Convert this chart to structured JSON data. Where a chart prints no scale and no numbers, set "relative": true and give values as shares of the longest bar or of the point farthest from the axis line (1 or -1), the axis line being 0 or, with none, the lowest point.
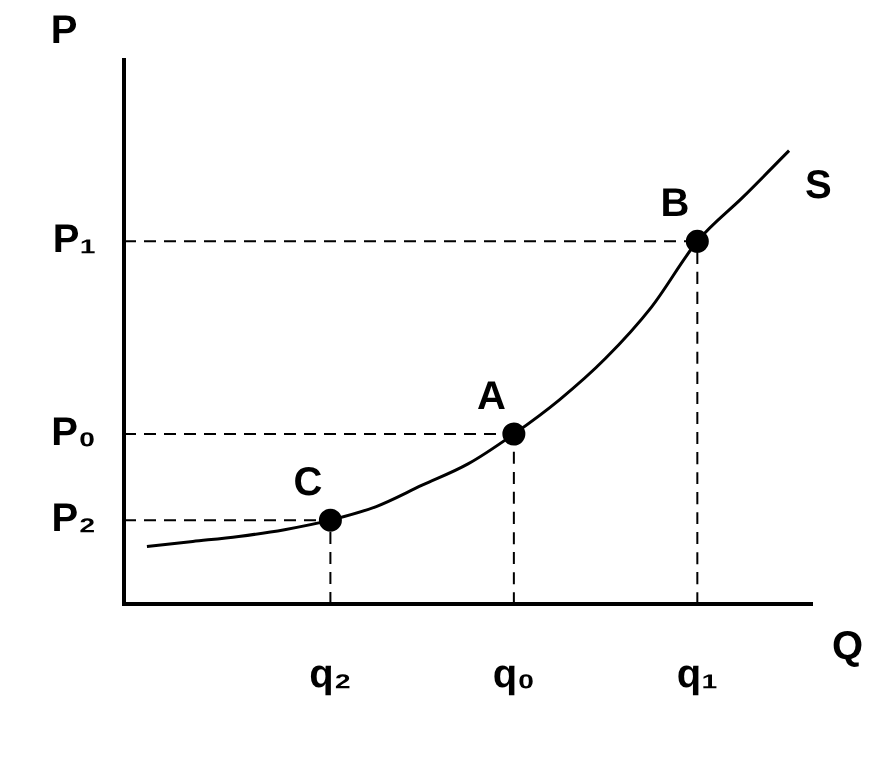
{
  "chart_data": {
    "type": "line",
    "xlabel": "Q",
    "ylabel": "P",
    "relative": true,
    "grid": false,
    "legend": false,
    "categories": [
      null,
      null,
      null,
      null,
      "q₂",
      null,
      null,
      null,
      "q₀",
      null,
      null,
      null,
      "q₁",
      null,
      null
    ],
    "series": [
      {
        "name": "S",
        "type": "line",
        "color": "#000000",
        "marker": "none",
        "values": [
          0.127,
          0.138,
          0.149,
          0.164,
          0.185,
          0.215,
          0.262,
          0.309,
          0.375,
          0.451,
          0.542,
          0.655,
          0.8,
          0.898,
          1
        ]
      },
      {
        "type": "line",
        "color": "#000000",
        "marker": "none",
        "line_style": "dashed",
        "x": [
          "q₂",
          "q₂"
        ],
        "values": [
          0,
          0.185
        ]
      },
      {
        "type": "line",
        "color": "#000000",
        "marker": "none",
        "line_style": "dashed",
        "x": [
          "q₀",
          "q₀"
        ],
        "values": [
          0,
          0.375
        ]
      },
      {
        "type": "line",
        "color": "#000000",
        "marker": "none",
        "line_style": "dashed",
        "x": [
          "q₁",
          "q₁"
        ],
        "values": [
          0,
          0.8
        ]
      },
      {
        "type": "scatter",
        "color": "#000000",
        "marker": "circle",
        "x": [
          "q₂",
          "q₀",
          "q₁"
        ],
        "values": [
          0.185,
          0.375,
          0.8
        ]
      }
    ],
    "annotations": [
      {
        "text": "C",
        "x": "q₂",
        "y": 0.185
      },
      {
        "text": "A",
        "x": "q₀",
        "y": 0.375
      },
      {
        "text": "B",
        "x": "q₁",
        "y": 0.8
      }
    ],
    "ref_lines": [
      {
        "axis": "y",
        "value": 0.8,
        "label": "P₁",
        "line_style": "dashed"
      },
      {
        "axis": "y",
        "value": 0.375,
        "label": "P₀",
        "line_style": "dashed"
      },
      {
        "axis": "y",
        "value": 0.185,
        "label": "P₂",
        "line_style": "dashed"
      }
    ]
  }
}
